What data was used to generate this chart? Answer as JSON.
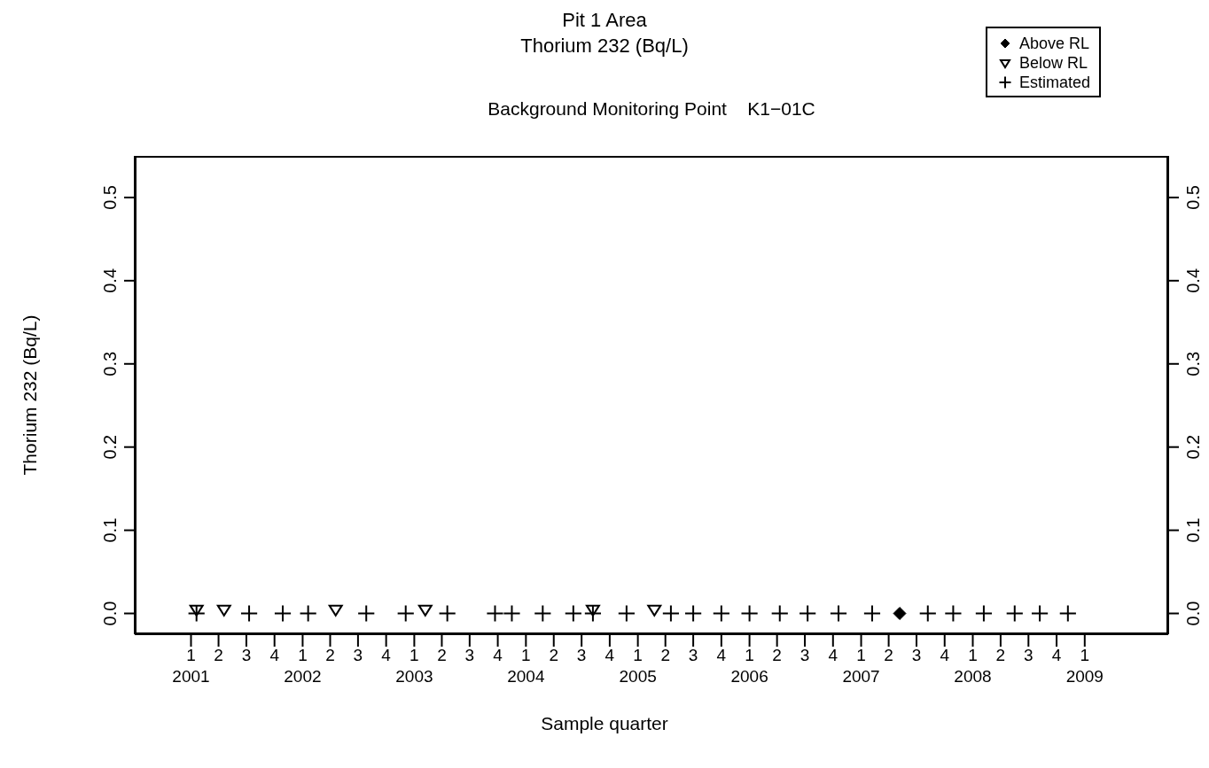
{
  "chart_data": {
    "type": "scatter",
    "title": "Pit 1 Area\nThorium 232 (Bq/L)",
    "subtitle": "Background Monitoring Point    K1−01C",
    "xlabel": "Sample quarter",
    "ylabel": "Thorium 232 (Bq/L)",
    "xlim": [
      "2000-07-01",
      "2009-10-01"
    ],
    "ylim": [
      -0.025,
      0.55
    ],
    "y2lim": [
      -0.025,
      0.55
    ],
    "xticks": [
      {
        "value": "2001-01-01",
        "label": "1\n2001"
      },
      {
        "value": "2001-04-01",
        "label": "2"
      },
      {
        "value": "2001-07-01",
        "label": "3"
      },
      {
        "value": "2001-10-01",
        "label": "4"
      },
      {
        "value": "2002-01-01",
        "label": "1\n2002"
      },
      {
        "value": "2002-04-01",
        "label": "2"
      },
      {
        "value": "2002-07-01",
        "label": "3"
      },
      {
        "value": "2002-10-01",
        "label": "4"
      },
      {
        "value": "2003-01-01",
        "label": "1\n2003"
      },
      {
        "value": "2003-04-01",
        "label": "2"
      },
      {
        "value": "2003-07-01",
        "label": "3"
      },
      {
        "value": "2003-10-01",
        "label": "4"
      },
      {
        "value": "2004-01-01",
        "label": "1\n2004"
      },
      {
        "value": "2004-04-01",
        "label": "2"
      },
      {
        "value": "2004-07-01",
        "label": "3"
      },
      {
        "value": "2004-10-01",
        "label": "4"
      },
      {
        "value": "2005-01-01",
        "label": "1\n2005"
      },
      {
        "value": "2005-04-01",
        "label": "2"
      },
      {
        "value": "2005-07-01",
        "label": "3"
      },
      {
        "value": "2005-10-01",
        "label": "4"
      },
      {
        "value": "2006-01-01",
        "label": "1\n2006"
      },
      {
        "value": "2006-04-01",
        "label": "2"
      },
      {
        "value": "2006-07-01",
        "label": "3"
      },
      {
        "value": "2006-10-01",
        "label": "4"
      },
      {
        "value": "2007-01-01",
        "label": "1\n2007"
      },
      {
        "value": "2007-04-01",
        "label": "2"
      },
      {
        "value": "2007-07-01",
        "label": "3"
      },
      {
        "value": "2007-10-01",
        "label": "4"
      },
      {
        "value": "2008-01-01",
        "label": "1\n2008"
      },
      {
        "value": "2008-04-01",
        "label": "2"
      },
      {
        "value": "2008-07-01",
        "label": "3"
      },
      {
        "value": "2008-10-01",
        "label": "4"
      },
      {
        "value": "2009-01-01",
        "label": "1\n2009"
      }
    ],
    "yticks": [
      {
        "value": 0,
        "label": "0.0"
      },
      0.1,
      0.2,
      0.3,
      0.4,
      0.5
    ],
    "y2ticks": [
      {
        "value": 0,
        "label": "0.0"
      },
      0.1,
      0.2,
      0.3,
      0.4,
      0.5
    ],
    "legend": "top right",
    "series": [
      {
        "name": "Above RL",
        "color": "#000000",
        "marker": "diamond",
        "x": [
          "2007-05-07"
        ],
        "values": [
          0
        ]
      },
      {
        "name": "Below RL",
        "color": "#000000",
        "marker": "triangle",
        "x": [
          "2001-01-19",
          "2001-04-19",
          "2002-04-19",
          "2003-02-06",
          "2004-08-07",
          "2005-02-24"
        ],
        "values": [
          0.005,
          0.005,
          0.005,
          0.005,
          0.005,
          0.005
        ]
      },
      {
        "name": "Estimated",
        "color": "#000000",
        "marker": "cross",
        "x": [
          "2001-01-19",
          "2001-07-10",
          "2001-10-28",
          "2002-01-19",
          "2002-07-28",
          "2002-12-04",
          "2003-04-19",
          "2003-09-22",
          "2003-11-16",
          "2004-02-25",
          "2004-06-04",
          "2004-08-07",
          "2004-11-25",
          "2005-04-19",
          "2005-07-01",
          "2005-10-01",
          "2006-01-01",
          "2006-04-10",
          "2006-07-10",
          "2006-10-19",
          "2007-02-06",
          "2007-08-07",
          "2007-10-29",
          "2008-02-06",
          "2008-05-17",
          "2008-08-07",
          "2008-11-07"
        ],
        "values": [
          0,
          0,
          0,
          0,
          0,
          0,
          0,
          0,
          0,
          0,
          0,
          0,
          0,
          0,
          0,
          0,
          0,
          0,
          0,
          0,
          0,
          0,
          0,
          0,
          0,
          0,
          0
        ]
      }
    ]
  }
}
